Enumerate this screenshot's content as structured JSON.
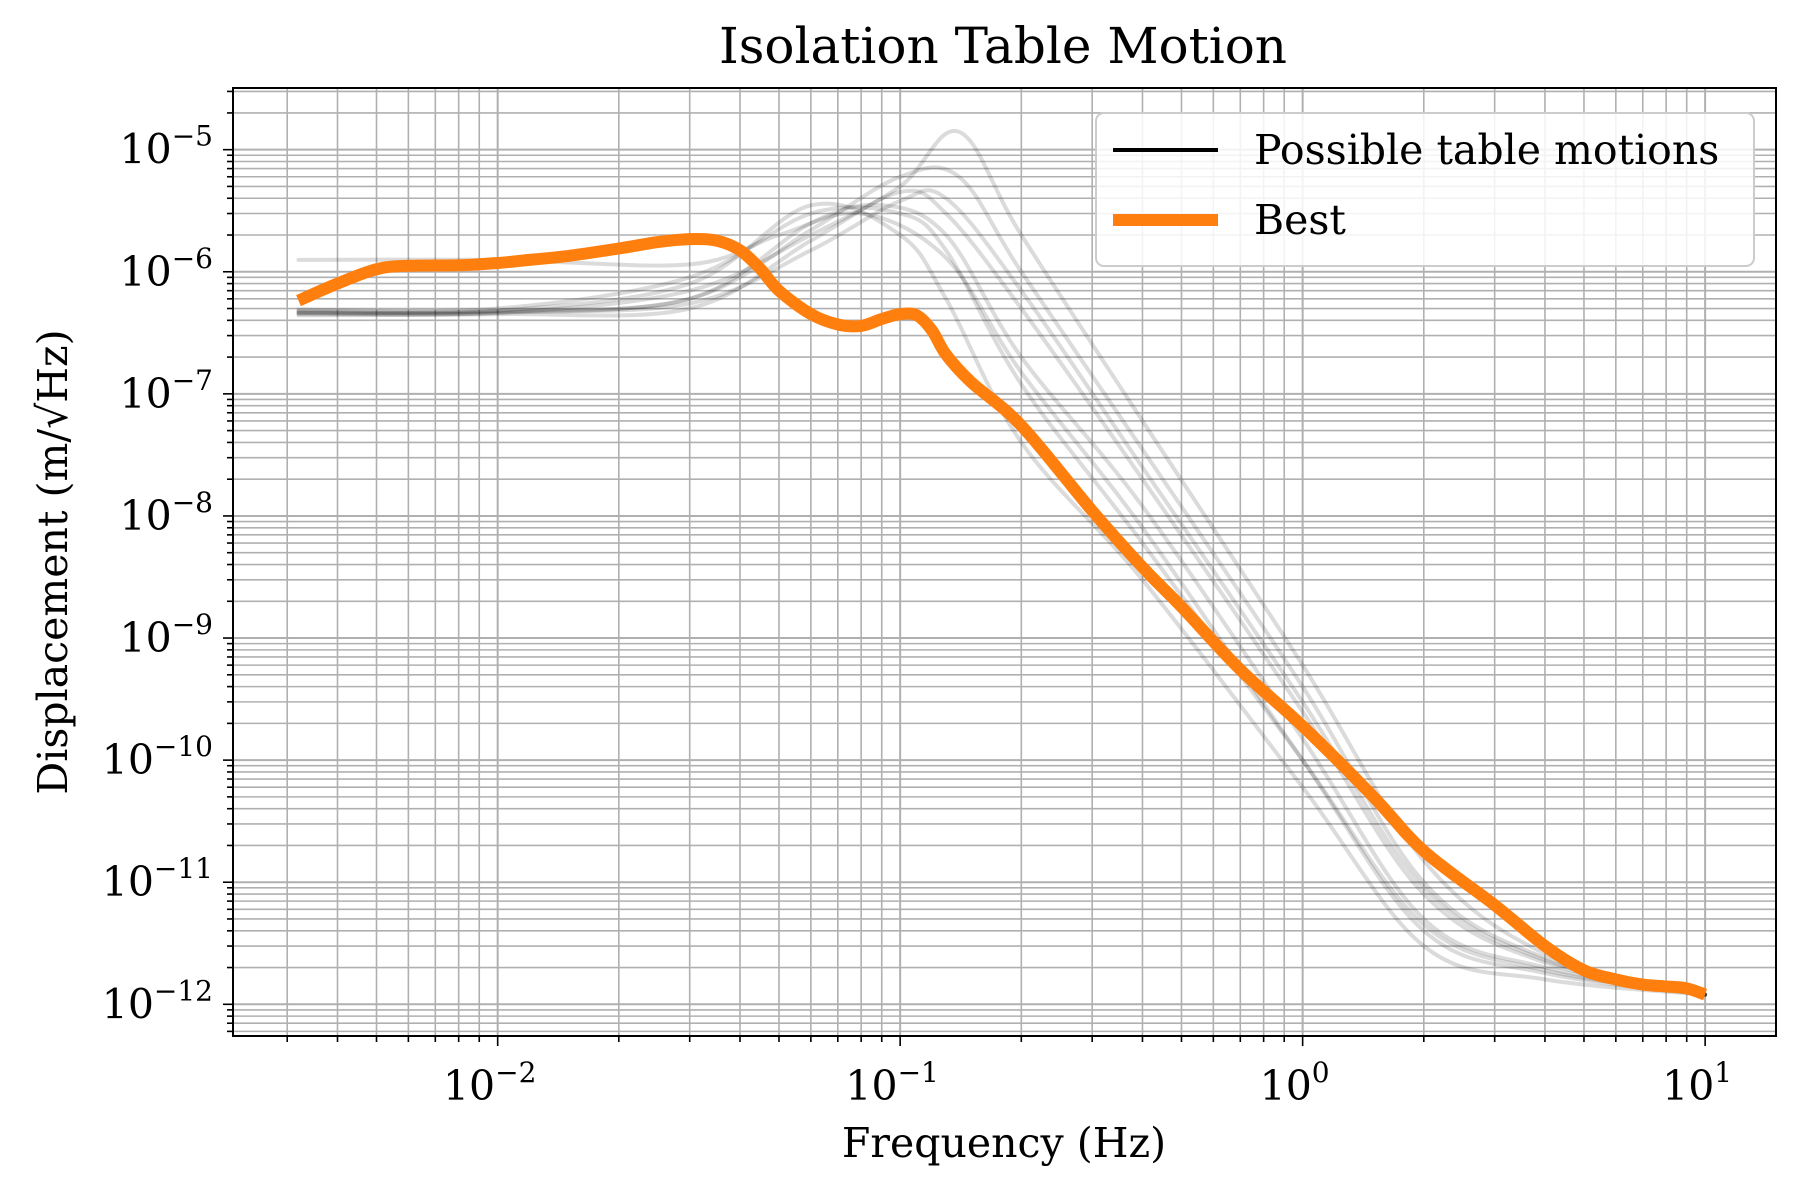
{
  "colors": {
    "best": "#ff7f0e",
    "motions": "#000000",
    "grid": "#b0b0b0",
    "background": "#ffffff"
  },
  "chart_data": {
    "type": "line",
    "title": "Isolation Table Motion",
    "xlabel": "Frequency (Hz)",
    "ylabel": "Displacement (m/√Hz)",
    "xscale": "log",
    "yscale": "log",
    "xlim": [
      0.0022,
      15
    ],
    "ylim": [
      5.5e-13,
      3.2e-05
    ],
    "grid": "major and minor",
    "legend_position": "top-right",
    "x_tick_labels": [
      {
        "value": 0.01,
        "base": "10",
        "exp": "−2"
      },
      {
        "value": 0.1,
        "base": "10",
        "exp": "−1"
      },
      {
        "value": 1,
        "base": "10",
        "exp": "0"
      },
      {
        "value": 10,
        "base": "10",
        "exp": "1"
      }
    ],
    "y_tick_labels": [
      {
        "value": 1e-05,
        "base": "10",
        "exp": "−5"
      },
      {
        "value": 1e-06,
        "base": "10",
        "exp": "−6"
      },
      {
        "value": 1e-07,
        "base": "10",
        "exp": "−7"
      },
      {
        "value": 1e-08,
        "base": "10",
        "exp": "−8"
      },
      {
        "value": 1e-09,
        "base": "10",
        "exp": "−9"
      },
      {
        "value": 1e-10,
        "base": "10",
        "exp": "−10"
      },
      {
        "value": 1e-11,
        "base": "10",
        "exp": "−11"
      },
      {
        "value": 1e-12,
        "base": "10",
        "exp": "−12"
      }
    ],
    "series": [
      {
        "name": "Possible table motions",
        "style": "many faint black traces (ensemble)",
        "representative_traces": [
          {
            "x": [
              0.0032,
              0.01,
              0.03,
              0.06,
              0.09,
              0.13,
              0.2,
              0.4,
              1.0,
              2.0,
              4.0,
              10.0
            ],
            "y": [
              4.8e-07,
              4.8e-07,
              6e-07,
              2.5e-06,
              3.5e-06,
              2e-06,
              2e-07,
              1.2e-08,
              1.5e-10,
              5e-12,
              2e-12,
              1.2e-12
            ]
          },
          {
            "x": [
              0.0032,
              0.01,
              0.03,
              0.06,
              0.1,
              0.13,
              0.2,
              0.4,
              1.0,
              2.0,
              4.0,
              10.0
            ],
            "y": [
              4.4e-07,
              4.5e-07,
              5e-07,
              1.8e-06,
              4.5e-06,
              3e-06,
              5e-07,
              2e-08,
              2.5e-10,
              8e-12,
              2.2e-12,
              1.2e-12
            ]
          },
          {
            "x": [
              0.0032,
              0.01,
              0.03,
              0.05,
              0.08,
              0.13,
              0.2,
              0.4,
              1.0,
              2.0,
              4.0,
              10.0
            ],
            "y": [
              1.25e-06,
              1.25e-06,
              1.15e-06,
              2e-06,
              3e-06,
              1.3e-06,
              1.5e-07,
              8e-09,
              1e-10,
              4e-12,
              1.8e-12,
              1.2e-12
            ]
          },
          {
            "x": [
              0.0032,
              0.01,
              0.03,
              0.06,
              0.1,
              0.14,
              0.2,
              0.4,
              1.0,
              2.0,
              4.0,
              10.0
            ],
            "y": [
              4.6e-07,
              4.6e-07,
              7e-07,
              2e-06,
              5e-06,
              1.4e-05,
              2e-06,
              6e-08,
              6e-10,
              1.5e-11,
              2.6e-12,
              1.2e-12
            ]
          },
          {
            "x": [
              0.0032,
              0.01,
              0.03,
              0.06,
              0.1,
              0.13,
              0.2,
              0.4,
              1.0,
              2.0,
              4.0,
              10.0
            ],
            "y": [
              4.7e-07,
              4.8e-07,
              8e-07,
              3.5e-06,
              2e-06,
              6e-07,
              4e-08,
              3e-09,
              6e-11,
              3e-12,
              1.6e-12,
              1.2e-12
            ]
          },
          {
            "x": [
              0.0032,
              0.01,
              0.03,
              0.06,
              0.1,
              0.14,
              0.2,
              0.4,
              1.0,
              2.0,
              4.0,
              10.0
            ],
            "y": [
              4.5e-07,
              4.6e-07,
              6e-07,
              2.2e-06,
              6e-06,
              6e-06,
              1e-06,
              3.5e-08,
              4e-10,
              1e-11,
              2.4e-12,
              1.2e-12
            ]
          },
          {
            "x": [
              0.0032,
              0.01,
              0.03,
              0.06,
              0.1,
              0.13,
              0.2,
              0.4,
              1.0,
              2.0,
              4.0,
              10.0
            ],
            "y": [
              4.9e-07,
              5e-07,
              9e-07,
              3e-06,
              3e-06,
              1.5e-06,
              1.2e-07,
              6e-09,
              1e-10,
              4.5e-12,
              1.9e-12,
              1.2e-12
            ]
          },
          {
            "x": [
              0.0032,
              0.01,
              0.03,
              0.06,
              0.1,
              0.13,
              0.2,
              0.4,
              1.0,
              2.0,
              4.0,
              10.0
            ],
            "y": [
              4.6e-07,
              4.7e-07,
              5.5e-07,
              1.5e-06,
              3.8e-06,
              4e-06,
              7e-07,
              2.5e-08,
              3e-10,
              9e-12,
              2.3e-12,
              1.2e-12
            ]
          }
        ]
      },
      {
        "name": "Best",
        "x": [
          0.0032,
          0.004,
          0.005,
          0.006,
          0.008,
          0.01,
          0.012,
          0.015,
          0.02,
          0.025,
          0.03,
          0.035,
          0.04,
          0.045,
          0.05,
          0.06,
          0.07,
          0.08,
          0.09,
          0.1,
          0.11,
          0.12,
          0.13,
          0.15,
          0.2,
          0.3,
          0.4,
          0.5,
          0.7,
          1.0,
          1.5,
          2.0,
          3.0,
          4.0,
          5.0,
          6.0,
          7.0,
          8.0,
          9.0,
          10.0
        ],
        "y": [
          5.8e-07,
          8e-07,
          1.05e-06,
          1.12e-06,
          1.13e-06,
          1.18e-06,
          1.25e-06,
          1.35e-06,
          1.55e-06,
          1.75e-06,
          1.85e-06,
          1.8e-06,
          1.5e-06,
          1.05e-06,
          7e-07,
          4.5e-07,
          3.7e-07,
          3.6e-07,
          4.1e-07,
          4.5e-07,
          4.4e-07,
          3.3e-07,
          2.1e-07,
          1.25e-07,
          5.5e-08,
          1.1e-08,
          3.8e-09,
          1.8e-09,
          5.5e-10,
          1.9e-10,
          5e-11,
          1.8e-11,
          6.5e-12,
          3e-12,
          1.9e-12,
          1.6e-12,
          1.45e-12,
          1.4e-12,
          1.35e-12,
          1.2e-12
        ]
      }
    ]
  }
}
